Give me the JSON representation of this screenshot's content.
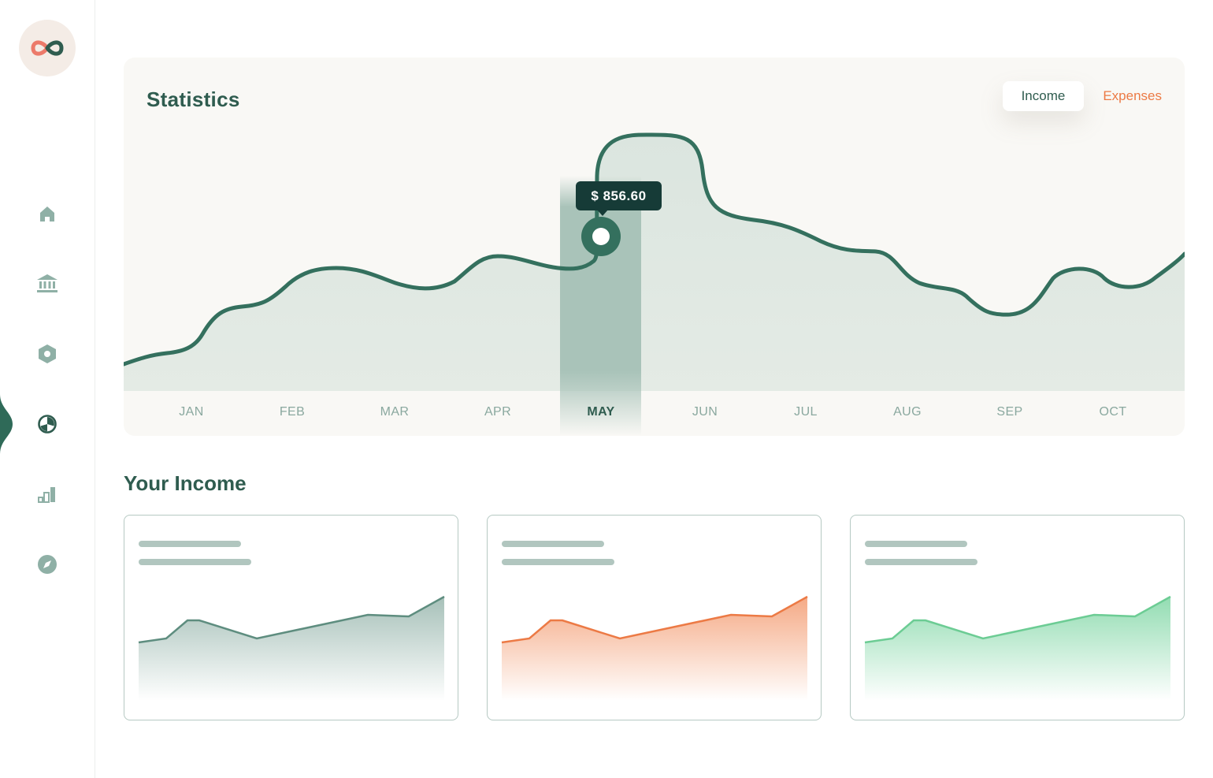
{
  "sidebar": {
    "logo_icon": "infinity-logo-icon",
    "items": [
      {
        "name": "home",
        "icon": "home-icon"
      },
      {
        "name": "bank",
        "icon": "bank-icon"
      },
      {
        "name": "settings",
        "icon": "hexagon-icon"
      },
      {
        "name": "analytics",
        "icon": "pie-chart-icon",
        "active": true
      },
      {
        "name": "reports",
        "icon": "bar-chart-icon"
      },
      {
        "name": "explore",
        "icon": "compass-icon"
      }
    ]
  },
  "statistics": {
    "title": "Statistics",
    "tabs": {
      "income": "Income",
      "expenses": "Expenses"
    },
    "active_tab": "Income",
    "tooltip": "$ 856.60",
    "highlight_month": "MAY"
  },
  "chart_data": {
    "type": "area",
    "categories": [
      "JAN",
      "FEB",
      "MAR",
      "APR",
      "MAY",
      "JUN",
      "JUL",
      "AUG",
      "SEP",
      "OCT"
    ],
    "highlight_value": 856.6,
    "colors": {
      "line": "#34705e",
      "fill": "#dfe7e1",
      "highlight": "#a9c3b9"
    }
  },
  "income": {
    "title": "Your Income",
    "cards": [
      {
        "color": "#5e8d7f",
        "fill": "#5e8d7f"
      },
      {
        "color": "#ec7a45",
        "fill": "#f39a6f"
      },
      {
        "color": "#6ccc94",
        "fill": "#7fd6a4"
      }
    ]
  },
  "colors": {
    "brand": "#2f5c4f",
    "accent": "#ec7a45",
    "muted": "#8aa89f"
  }
}
